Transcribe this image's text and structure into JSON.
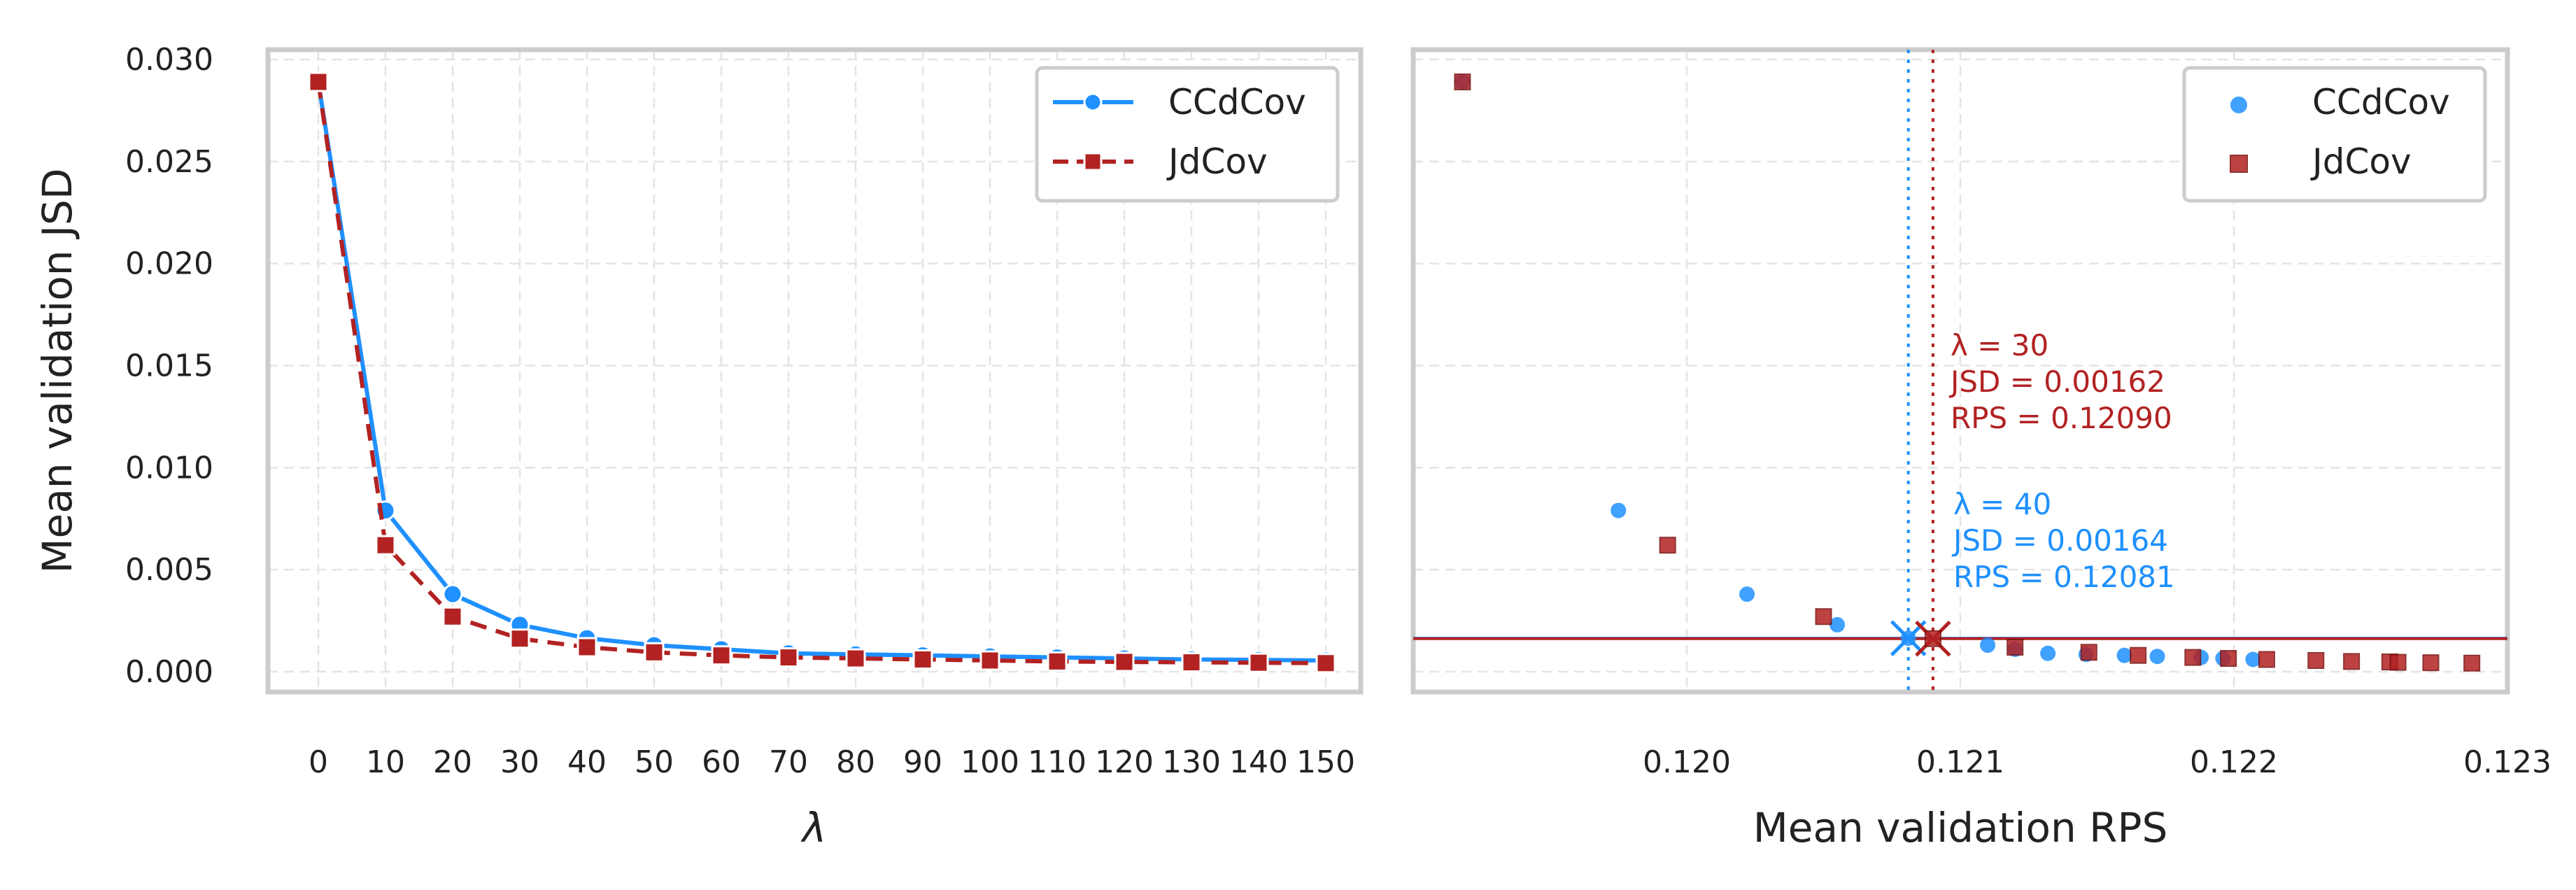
{
  "chart_data": [
    {
      "type": "line",
      "xlabel": "λ",
      "ylabel": "Mean validation JSD",
      "ylim": [
        0,
        0.03
      ],
      "yticks": [
        "0.000",
        "0.005",
        "0.010",
        "0.015",
        "0.020",
        "0.025",
        "0.030"
      ],
      "xticks": [
        "0",
        "10",
        "20",
        "30",
        "40",
        "50",
        "60",
        "70",
        "80",
        "90",
        "100",
        "110",
        "120",
        "130",
        "140",
        "150"
      ],
      "grid": true,
      "legend": "top-right",
      "x": [
        0,
        10,
        20,
        30,
        40,
        50,
        60,
        70,
        80,
        90,
        100,
        110,
        120,
        130,
        140,
        150
      ],
      "series": [
        {
          "name": "CCdCov",
          "color": "#1e90ff",
          "marker": "circle",
          "linestyle": "solid",
          "values": [
            0.0289,
            0.0079,
            0.0038,
            0.0023,
            0.00164,
            0.0013,
            0.0011,
            0.0009,
            0.00085,
            0.0008,
            0.00075,
            0.0007,
            0.00065,
            0.0006,
            0.00058,
            0.00055
          ]
        },
        {
          "name": "JdCov",
          "color": "#b22222",
          "marker": "square",
          "linestyle": "dashed",
          "values": [
            0.0289,
            0.0062,
            0.0027,
            0.00162,
            0.0012,
            0.00095,
            0.0008,
            0.0007,
            0.00065,
            0.0006,
            0.00055,
            0.0005,
            0.00048,
            0.00046,
            0.00044,
            0.00042
          ]
        }
      ]
    },
    {
      "type": "scatter",
      "xlabel": "Mean validation RPS",
      "ylabel": "",
      "xlim": [
        0.119,
        0.123
      ],
      "ylim": [
        0,
        0.03
      ],
      "xticks": [
        "0.120",
        "0.121",
        "0.122",
        "0.123"
      ],
      "grid": true,
      "legend": "top-right",
      "series": [
        {
          "name": "CCdCov",
          "color": "#1e90ff",
          "marker": "circle",
          "points": [
            [
              0.11918,
              0.0289
            ],
            [
              0.11975,
              0.0079
            ],
            [
              0.12022,
              0.0038
            ],
            [
              0.12055,
              0.0023
            ],
            [
              0.12081,
              0.00164
            ],
            [
              0.1211,
              0.0013
            ],
            [
              0.1212,
              0.0011
            ],
            [
              0.12132,
              0.0009
            ],
            [
              0.12146,
              0.00085
            ],
            [
              0.1216,
              0.0008
            ],
            [
              0.12172,
              0.00075
            ],
            [
              0.12188,
              0.0007
            ],
            [
              0.12196,
              0.00065
            ],
            [
              0.12207,
              0.0006
            ]
          ]
        },
        {
          "name": "JdCov",
          "color": "#b22222",
          "marker": "square",
          "points": [
            [
              0.11918,
              0.0289
            ],
            [
              0.11993,
              0.0062
            ],
            [
              0.1205,
              0.0027
            ],
            [
              0.1209,
              0.00162
            ],
            [
              0.1212,
              0.0012
            ],
            [
              0.12147,
              0.00095
            ],
            [
              0.12165,
              0.0008
            ],
            [
              0.12185,
              0.0007
            ],
            [
              0.12198,
              0.00065
            ],
            [
              0.12212,
              0.0006
            ],
            [
              0.1223,
              0.00055
            ],
            [
              0.12243,
              0.0005
            ],
            [
              0.12257,
              0.00048
            ],
            [
              0.1226,
              0.00046
            ],
            [
              0.12272,
              0.00044
            ],
            [
              0.12287,
              0.00042
            ]
          ]
        }
      ],
      "reference_lines": [
        {
          "series": "CCdCov",
          "color": "#1e90ff",
          "x": 0.12081,
          "y": 0.00164,
          "style": "dotted"
        },
        {
          "series": "JdCov",
          "color": "#b22222",
          "x": 0.1209,
          "y": 0.00162,
          "style": "dotted"
        }
      ],
      "annotations": [
        {
          "color": "#b22222",
          "lines": [
            "λ = 30",
            "JSD = 0.00162",
            "RPS = 0.12090"
          ]
        },
        {
          "color": "#1e90ff",
          "lines": [
            "λ = 40",
            "JSD = 0.00164",
            "RPS = 0.12081"
          ]
        }
      ]
    }
  ]
}
